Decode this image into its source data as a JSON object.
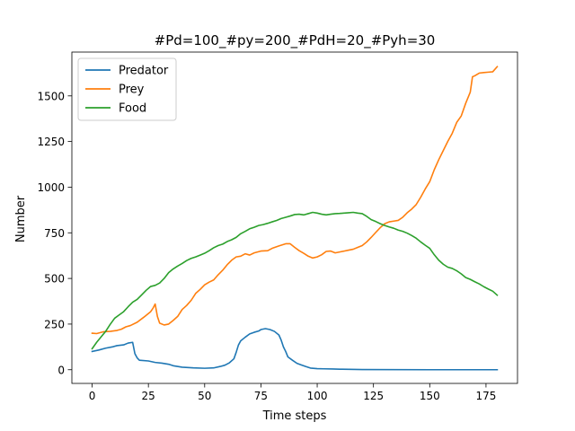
{
  "chart_data": {
    "type": "line",
    "title": "#Pd=100_#py=200_#PdH=20_#Pyh=30",
    "xlabel": "Time steps",
    "ylabel": "Number",
    "xlim": [
      -9,
      189
    ],
    "ylim": [
      -75,
      1740
    ],
    "xticks": [
      0,
      25,
      50,
      75,
      100,
      125,
      150,
      175
    ],
    "yticks": [
      0,
      250,
      500,
      750,
      1000,
      1250,
      1500
    ],
    "grid": false,
    "legend_position": "upper-left",
    "series": [
      {
        "name": "Predator",
        "color": "#1f77b4",
        "points": [
          [
            0,
            100
          ],
          [
            3,
            108
          ],
          [
            6,
            118
          ],
          [
            9,
            125
          ],
          [
            11,
            132
          ],
          [
            14,
            136
          ],
          [
            16,
            146
          ],
          [
            18,
            150
          ],
          [
            19,
            88
          ],
          [
            20,
            65
          ],
          [
            21,
            52
          ],
          [
            25,
            48
          ],
          [
            28,
            40
          ],
          [
            31,
            36
          ],
          [
            34,
            30
          ],
          [
            36,
            22
          ],
          [
            40,
            14
          ],
          [
            45,
            10
          ],
          [
            50,
            8
          ],
          [
            54,
            10
          ],
          [
            57,
            18
          ],
          [
            59,
            25
          ],
          [
            61,
            38
          ],
          [
            63,
            60
          ],
          [
            64,
            95
          ],
          [
            65,
            135
          ],
          [
            66,
            158
          ],
          [
            68,
            178
          ],
          [
            70,
            196
          ],
          [
            72,
            205
          ],
          [
            74,
            212
          ],
          [
            75,
            220
          ],
          [
            77,
            225
          ],
          [
            79,
            220
          ],
          [
            81,
            210
          ],
          [
            83,
            190
          ],
          [
            84,
            162
          ],
          [
            85,
            125
          ],
          [
            86,
            100
          ],
          [
            87,
            70
          ],
          [
            89,
            52
          ],
          [
            91,
            35
          ],
          [
            93,
            26
          ],
          [
            95,
            17
          ],
          [
            97,
            9
          ],
          [
            100,
            6
          ],
          [
            103,
            5
          ],
          [
            107,
            4
          ],
          [
            110,
            3
          ],
          [
            120,
            1
          ],
          [
            150,
            0
          ],
          [
            180,
            0
          ]
        ]
      },
      {
        "name": "Prey",
        "color": "#ff7f0e",
        "points": [
          [
            0,
            200
          ],
          [
            2,
            198
          ],
          [
            5,
            208
          ],
          [
            8,
            210
          ],
          [
            11,
            215
          ],
          [
            13,
            222
          ],
          [
            15,
            235
          ],
          [
            17,
            242
          ],
          [
            20,
            260
          ],
          [
            23,
            288
          ],
          [
            26,
            318
          ],
          [
            27,
            336
          ],
          [
            28,
            360
          ],
          [
            29,
            292
          ],
          [
            30,
            255
          ],
          [
            32,
            245
          ],
          [
            34,
            250
          ],
          [
            36,
            270
          ],
          [
            38,
            292
          ],
          [
            40,
            330
          ],
          [
            42,
            352
          ],
          [
            44,
            380
          ],
          [
            46,
            418
          ],
          [
            48,
            440
          ],
          [
            50,
            465
          ],
          [
            52,
            480
          ],
          [
            54,
            492
          ],
          [
            56,
            520
          ],
          [
            58,
            545
          ],
          [
            60,
            575
          ],
          [
            62,
            600
          ],
          [
            64,
            618
          ],
          [
            66,
            622
          ],
          [
            68,
            635
          ],
          [
            70,
            628
          ],
          [
            72,
            640
          ],
          [
            75,
            650
          ],
          [
            78,
            652
          ],
          [
            80,
            665
          ],
          [
            83,
            678
          ],
          [
            86,
            690
          ],
          [
            88,
            690
          ],
          [
            90,
            670
          ],
          [
            92,
            652
          ],
          [
            94,
            638
          ],
          [
            96,
            622
          ],
          [
            98,
            612
          ],
          [
            100,
            618
          ],
          [
            102,
            630
          ],
          [
            104,
            648
          ],
          [
            106,
            650
          ],
          [
            108,
            640
          ],
          [
            110,
            645
          ],
          [
            112,
            650
          ],
          [
            114,
            655
          ],
          [
            116,
            660
          ],
          [
            118,
            670
          ],
          [
            120,
            680
          ],
          [
            122,
            700
          ],
          [
            124,
            725
          ],
          [
            126,
            752
          ],
          [
            128,
            778
          ],
          [
            130,
            800
          ],
          [
            132,
            810
          ],
          [
            134,
            814
          ],
          [
            136,
            818
          ],
          [
            138,
            835
          ],
          [
            140,
            860
          ],
          [
            142,
            880
          ],
          [
            144,
            905
          ],
          [
            146,
            945
          ],
          [
            148,
            990
          ],
          [
            150,
            1030
          ],
          [
            152,
            1095
          ],
          [
            154,
            1150
          ],
          [
            156,
            1200
          ],
          [
            158,
            1250
          ],
          [
            160,
            1295
          ],
          [
            162,
            1355
          ],
          [
            164,
            1390
          ],
          [
            166,
            1460
          ],
          [
            168,
            1520
          ],
          [
            169,
            1605
          ],
          [
            170,
            1610
          ],
          [
            172,
            1625
          ],
          [
            174,
            1628
          ],
          [
            176,
            1630
          ],
          [
            178,
            1632
          ],
          [
            180,
            1660
          ]
        ]
      },
      {
        "name": "Food",
        "color": "#2ca02c",
        "points": [
          [
            0,
            115
          ],
          [
            2,
            150
          ],
          [
            4,
            180
          ],
          [
            6,
            210
          ],
          [
            8,
            248
          ],
          [
            10,
            282
          ],
          [
            12,
            300
          ],
          [
            14,
            318
          ],
          [
            16,
            345
          ],
          [
            18,
            370
          ],
          [
            20,
            385
          ],
          [
            22,
            410
          ],
          [
            24,
            435
          ],
          [
            26,
            456
          ],
          [
            28,
            462
          ],
          [
            30,
            475
          ],
          [
            32,
            500
          ],
          [
            34,
            532
          ],
          [
            36,
            552
          ],
          [
            38,
            568
          ],
          [
            40,
            582
          ],
          [
            42,
            598
          ],
          [
            44,
            610
          ],
          [
            46,
            618
          ],
          [
            48,
            628
          ],
          [
            50,
            638
          ],
          [
            52,
            652
          ],
          [
            54,
            668
          ],
          [
            56,
            680
          ],
          [
            58,
            688
          ],
          [
            60,
            702
          ],
          [
            62,
            712
          ],
          [
            64,
            725
          ],
          [
            66,
            745
          ],
          [
            68,
            758
          ],
          [
            70,
            772
          ],
          [
            72,
            780
          ],
          [
            74,
            790
          ],
          [
            76,
            795
          ],
          [
            78,
            802
          ],
          [
            80,
            810
          ],
          [
            82,
            818
          ],
          [
            84,
            828
          ],
          [
            86,
            835
          ],
          [
            88,
            842
          ],
          [
            90,
            850
          ],
          [
            92,
            852
          ],
          [
            94,
            848
          ],
          [
            96,
            855
          ],
          [
            98,
            862
          ],
          [
            100,
            858
          ],
          [
            102,
            852
          ],
          [
            104,
            848
          ],
          [
            106,
            852
          ],
          [
            108,
            855
          ],
          [
            110,
            856
          ],
          [
            112,
            858
          ],
          [
            114,
            860
          ],
          [
            116,
            862
          ],
          [
            118,
            858
          ],
          [
            120,
            855
          ],
          [
            122,
            840
          ],
          [
            124,
            822
          ],
          [
            126,
            812
          ],
          [
            128,
            800
          ],
          [
            130,
            790
          ],
          [
            132,
            782
          ],
          [
            134,
            775
          ],
          [
            136,
            765
          ],
          [
            138,
            758
          ],
          [
            140,
            748
          ],
          [
            142,
            735
          ],
          [
            144,
            720
          ],
          [
            146,
            700
          ],
          [
            148,
            682
          ],
          [
            150,
            665
          ],
          [
            152,
            630
          ],
          [
            154,
            600
          ],
          [
            156,
            578
          ],
          [
            158,
            562
          ],
          [
            160,
            555
          ],
          [
            162,
            542
          ],
          [
            164,
            525
          ],
          [
            166,
            505
          ],
          [
            168,
            495
          ],
          [
            170,
            482
          ],
          [
            172,
            470
          ],
          [
            174,
            455
          ],
          [
            176,
            442
          ],
          [
            178,
            430
          ],
          [
            180,
            408
          ]
        ]
      }
    ]
  }
}
